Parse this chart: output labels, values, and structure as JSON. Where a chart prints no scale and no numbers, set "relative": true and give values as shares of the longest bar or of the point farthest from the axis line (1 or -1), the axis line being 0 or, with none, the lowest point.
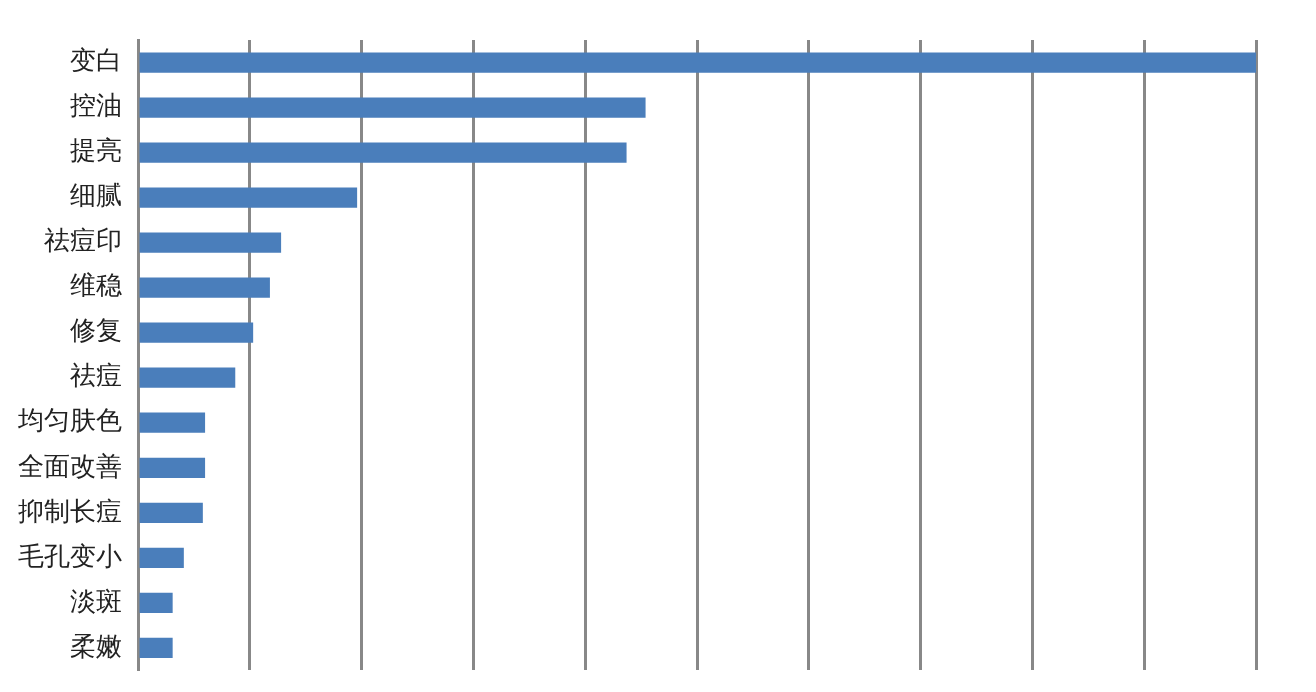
{
  "chart_data": {
    "type": "bar",
    "orientation": "horizontal",
    "relative": true,
    "grid": "x",
    "legend": false,
    "categories": [
      "变白",
      "控油",
      "提亮",
      "细腻",
      "祛痘印",
      "维稳",
      "修复",
      "祛痘",
      "均匀肤色",
      "全面改善",
      "抑制长痘",
      "毛孔变小",
      "淡斑",
      "柔嫩"
    ],
    "values": [
      1,
      0.454,
      0.437,
      0.196,
      0.128,
      0.118,
      0.103,
      0.087,
      0.06,
      0.06,
      0.058,
      0.041,
      0.031,
      0.031
    ],
    "color": "#4a7ebb"
  }
}
